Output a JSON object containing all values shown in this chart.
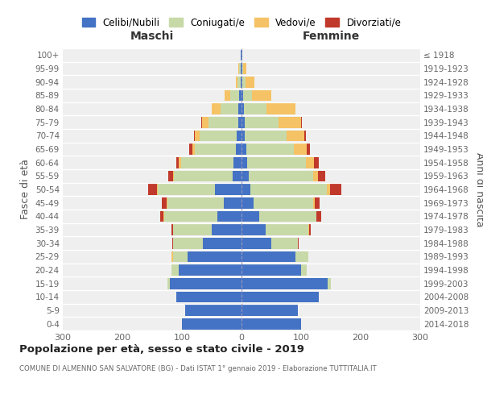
{
  "age_groups": [
    "0-4",
    "5-9",
    "10-14",
    "15-19",
    "20-24",
    "25-29",
    "30-34",
    "35-39",
    "40-44",
    "45-49",
    "50-54",
    "55-59",
    "60-64",
    "65-69",
    "70-74",
    "75-79",
    "80-84",
    "85-89",
    "90-94",
    "95-99",
    "100+"
  ],
  "birth_years": [
    "2014-2018",
    "2009-2013",
    "2004-2008",
    "1999-2003",
    "1994-1998",
    "1989-1993",
    "1984-1988",
    "1979-1983",
    "1974-1978",
    "1969-1973",
    "1964-1968",
    "1959-1963",
    "1954-1958",
    "1949-1953",
    "1944-1948",
    "1939-1943",
    "1934-1938",
    "1929-1933",
    "1924-1928",
    "1919-1923",
    "≤ 1918"
  ],
  "colors": {
    "celibi": "#4472c4",
    "coniugati": "#c8d9a8",
    "vedovi": "#f5c265",
    "divorziati": "#c0392b"
  },
  "maschi": {
    "celibi": [
      100,
      95,
      110,
      120,
      105,
      90,
      65,
      50,
      40,
      30,
      45,
      15,
      14,
      10,
      8,
      6,
      5,
      4,
      2,
      2,
      1
    ],
    "coniugati": [
      0,
      0,
      0,
      5,
      12,
      25,
      50,
      65,
      90,
      95,
      95,
      98,
      88,
      68,
      62,
      50,
      30,
      15,
      5,
      2,
      0
    ],
    "vedovi": [
      0,
      0,
      0,
      0,
      0,
      2,
      0,
      0,
      1,
      1,
      2,
      2,
      3,
      5,
      8,
      10,
      15,
      10,
      3,
      1,
      0
    ],
    "divorziati": [
      0,
      0,
      0,
      0,
      0,
      0,
      1,
      3,
      5,
      8,
      15,
      8,
      5,
      5,
      2,
      1,
      0,
      0,
      0,
      0,
      0
    ]
  },
  "femmine": {
    "celibi": [
      100,
      95,
      130,
      145,
      100,
      90,
      50,
      40,
      30,
      20,
      15,
      12,
      10,
      8,
      6,
      5,
      4,
      3,
      2,
      1,
      1
    ],
    "coniugati": [
      0,
      0,
      0,
      5,
      10,
      22,
      45,
      72,
      95,
      100,
      128,
      108,
      98,
      80,
      70,
      57,
      38,
      15,
      5,
      2,
      0
    ],
    "vedovi": [
      0,
      0,
      0,
      0,
      0,
      0,
      0,
      1,
      1,
      3,
      5,
      8,
      14,
      22,
      30,
      38,
      48,
      32,
      15,
      5,
      1
    ],
    "divorziati": [
      0,
      0,
      0,
      0,
      0,
      0,
      1,
      3,
      8,
      8,
      20,
      12,
      8,
      5,
      2,
      2,
      0,
      0,
      0,
      0,
      0
    ]
  },
  "title": "Popolazione per età, sesso e stato civile - 2019",
  "subtitle": "COMUNE DI ALMENNO SAN SALVATORE (BG) - Dati ISTAT 1° gennaio 2019 - Elaborazione TUTTITALIA.IT",
  "xlabel_left": "Maschi",
  "xlabel_right": "Femmine",
  "ylabel_left": "Fasce di età",
  "ylabel_right": "Anni di nascita",
  "xlim": 300,
  "legend_labels": [
    "Celibi/Nubili",
    "Coniugati/e",
    "Vedovi/e",
    "Divorziati/e"
  ]
}
